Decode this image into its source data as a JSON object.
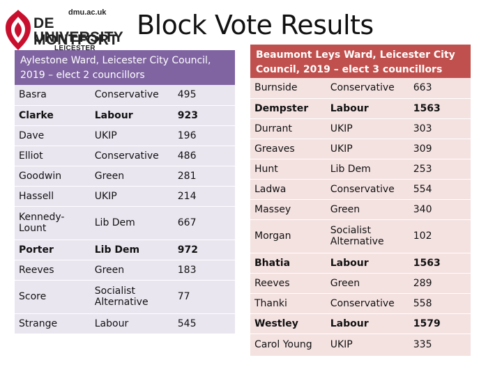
{
  "logo": {
    "site": "dmu.ac.uk",
    "line1": "DE MONTFORT",
    "line2": "UNIVERSITY",
    "line3": "LEICESTER",
    "color": "#c8102e"
  },
  "title": "Block Vote Results",
  "left": {
    "heading": "Aylestone Ward, Leicester City Council, 2019 – elect 2 councillors",
    "header_color": "#8064a2",
    "rows": [
      {
        "name": "Basra",
        "party": "Conservative",
        "votes": "495",
        "bold": false
      },
      {
        "name": "Clarke",
        "party": "Labour",
        "votes": "923",
        "bold": true
      },
      {
        "name": "Dave",
        "party": "UKIP",
        "votes": "196",
        "bold": false
      },
      {
        "name": "Elliot",
        "party": "Conservative",
        "votes": "486",
        "bold": false
      },
      {
        "name": "Goodwin",
        "party": "Green",
        "votes": "281",
        "bold": false
      },
      {
        "name": "Hassell",
        "party": "UKIP",
        "votes": "214",
        "bold": false
      },
      {
        "name": "Kennedy-Lount",
        "party": "Lib Dem",
        "votes": "667",
        "bold": false
      },
      {
        "name": "Porter",
        "party": "Lib  Dem",
        "votes": "972",
        "bold": true
      },
      {
        "name": "Reeves",
        "party": "Green",
        "votes": "183",
        "bold": false
      },
      {
        "name": "Score",
        "party": "Socialist Alternative",
        "votes": "77",
        "bold": false
      },
      {
        "name": "Strange",
        "party": "Labour",
        "votes": "545",
        "bold": false
      }
    ]
  },
  "right": {
    "heading": "Beaumont Leys Ward, Leicester City Council, 2019 – elect 3 councillors",
    "header_color": "#c0504d",
    "rows": [
      {
        "name": "Burnside",
        "party": "Conservative",
        "votes": "663",
        "bold": false
      },
      {
        "name": "Dempster",
        "party": "Labour",
        "votes": "1563",
        "bold": true
      },
      {
        "name": "Durrant",
        "party": "UKIP",
        "votes": "303",
        "bold": false
      },
      {
        "name": "Greaves",
        "party": "UKIP",
        "votes": "309",
        "bold": false
      },
      {
        "name": "Hunt",
        "party": "Lib Dem",
        "votes": "253",
        "bold": false
      },
      {
        "name": "Ladwa",
        "party": "Conservative",
        "votes": "554",
        "bold": false
      },
      {
        "name": "Massey",
        "party": "Green",
        "votes": "340",
        "bold": false
      },
      {
        "name": "Morgan",
        "party": "Socialist Alternative",
        "votes": "102",
        "bold": false
      },
      {
        "name": "Bhatia",
        "party": "Labour",
        "votes": "1563",
        "bold": true
      },
      {
        "name": " Reeves",
        "party": "Green",
        "votes": "289",
        "bold": false
      },
      {
        "name": "Thanki",
        "party": "Conservative",
        "votes": "558",
        "bold": false
      },
      {
        "name": "Westley",
        "party": "Labour",
        "votes": "1579",
        "bold": true
      },
      {
        "name": "Carol Young",
        "party": "UKIP",
        "votes": "335",
        "bold": false
      }
    ]
  }
}
